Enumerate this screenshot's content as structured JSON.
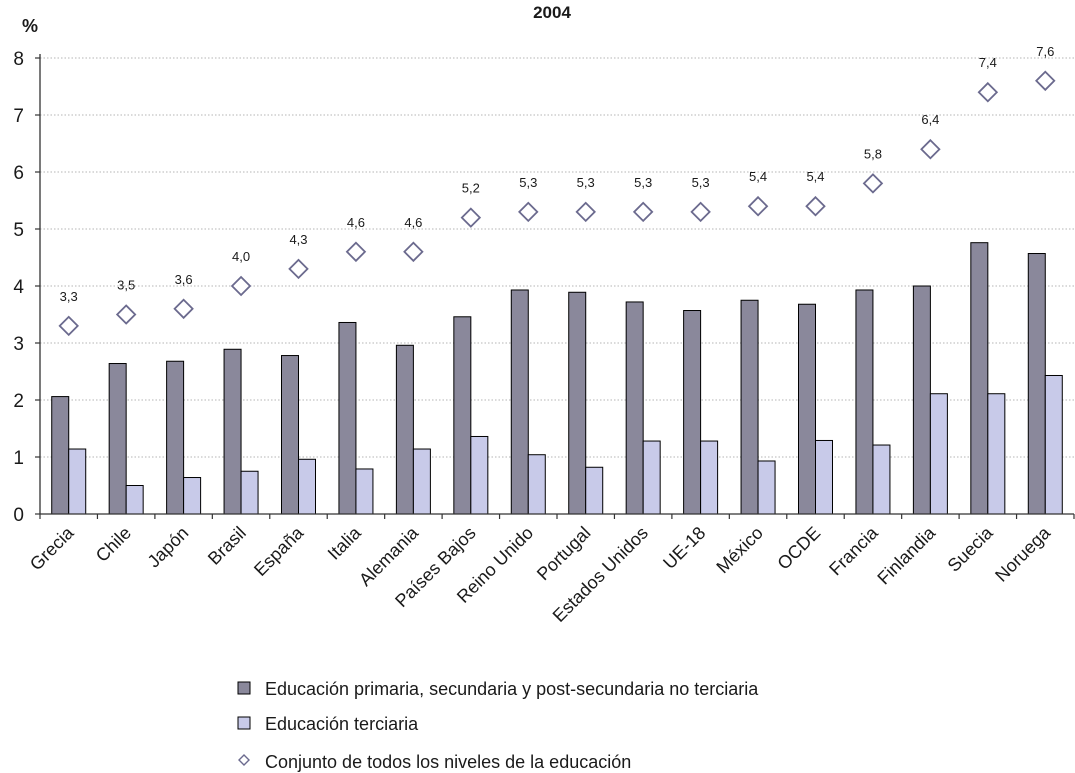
{
  "colors": {
    "primary": "#8a889b",
    "tertiary": "#c8cae9",
    "diamond": "#6b6a8e",
    "axis": "#333333",
    "grid": "#b4b4b4"
  },
  "chart_data": {
    "type": "bar",
    "title": "2004",
    "ylabel": "%",
    "xlabel": "",
    "ylim": [
      0,
      8
    ],
    "yticks": [
      0,
      1,
      2,
      3,
      4,
      5,
      6,
      7,
      8
    ],
    "grid": true,
    "legend_position": "bottom",
    "categories": [
      "Grecia",
      "Chile",
      "Japón",
      "Brasil",
      "España",
      "Italia",
      "Alemania",
      "Países Bajos",
      "Reino Unido",
      "Portugal",
      "Estados Unidos",
      "UE-18",
      "México",
      "OCDE",
      "Francia",
      "Finlandia",
      "Suecia",
      "Noruega"
    ],
    "series": [
      {
        "name": "Educación primaria, secundaria y post-secundaria no terciaria",
        "kind": "bar",
        "values": [
          2.06,
          2.64,
          2.68,
          2.89,
          2.78,
          3.36,
          2.96,
          3.46,
          3.93,
          3.89,
          3.72,
          3.57,
          3.75,
          3.68,
          3.93,
          4.0,
          4.76,
          4.57
        ]
      },
      {
        "name": "Educación terciaria",
        "kind": "bar",
        "values": [
          1.14,
          0.5,
          0.64,
          0.75,
          0.96,
          0.79,
          1.14,
          1.36,
          1.04,
          0.82,
          1.28,
          1.28,
          0.93,
          1.29,
          1.21,
          2.11,
          2.11,
          2.43
        ]
      },
      {
        "name": "Conjunto de todos los niveles de la educación",
        "kind": "diamond",
        "values": [
          3.3,
          3.5,
          3.6,
          4.0,
          4.3,
          4.6,
          4.6,
          5.2,
          5.3,
          5.3,
          5.3,
          5.3,
          5.4,
          5.4,
          5.8,
          6.4,
          7.4,
          7.6
        ],
        "labels": [
          "3,3",
          "3,5",
          "3,6",
          "4,0",
          "4,3",
          "4,6",
          "4,6",
          "5,2",
          "5,3",
          "5,3",
          "5,3",
          "5,3",
          "5,4",
          "5,4",
          "5,8",
          "6,4",
          "7,4",
          "7,6"
        ]
      }
    ]
  }
}
